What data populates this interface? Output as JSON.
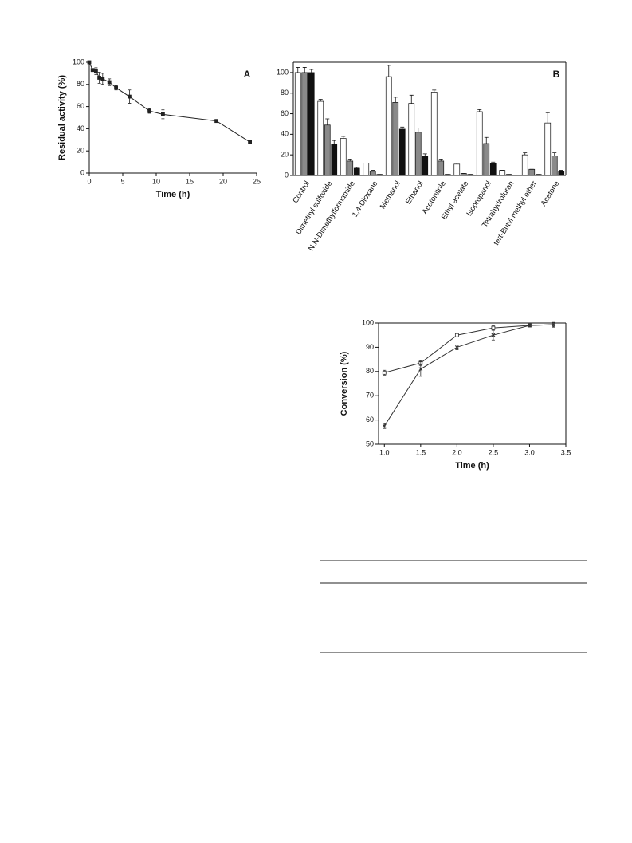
{
  "chart_data": [
    {
      "type": "line",
      "label": "A",
      "xlabel": "Time (h)",
      "ylabel": "Residual activity (%)",
      "xlim": [
        0,
        25
      ],
      "xticks": [
        0,
        5,
        10,
        15,
        20,
        25
      ],
      "ylim": [
        0,
        100
      ],
      "yticks": [
        0,
        20,
        40,
        60,
        80,
        100
      ],
      "x": [
        0,
        0.5,
        1,
        1.5,
        2,
        3,
        4,
        6,
        9,
        11,
        19,
        24
      ],
      "series": [
        {
          "color": "#222222",
          "marker": "square",
          "values": [
            100,
            93,
            92,
            86,
            85,
            82,
            77,
            69,
            56,
            53,
            47,
            28
          ],
          "errors": [
            0,
            1,
            3,
            5,
            5,
            3,
            2,
            6,
            2,
            4,
            1,
            1
          ]
        }
      ]
    },
    {
      "type": "bar",
      "label": "B",
      "ylim": [
        0,
        110
      ],
      "yticks": [
        0,
        20,
        40,
        60,
        80,
        100
      ],
      "categories": [
        "Control",
        "Dimethyl sulfoxide",
        "N,N-Dimethylformamide",
        "1,4-Dioxane",
        "Methanol",
        "Ethanol",
        "Acetonitrile",
        "Ethyl acetate",
        "Isopropanol",
        "Tetrahydrofuran",
        "tert-Butyl methyl ether",
        "Acetone"
      ],
      "series": [
        {
          "color": "#ffffff",
          "values": [
            100,
            72,
            36,
            12,
            96,
            70,
            81,
            11,
            62,
            5,
            20,
            51
          ],
          "errors": [
            5,
            2,
            2,
            0,
            11,
            8,
            2,
            1,
            2,
            0,
            2,
            10
          ]
        },
        {
          "color": "#8a8a8a",
          "values": [
            100,
            49,
            14,
            4,
            71,
            42,
            14,
            2,
            31,
            1,
            6,
            19
          ],
          "errors": [
            5,
            6,
            2,
            1,
            5,
            4,
            2,
            0,
            6,
            0,
            0,
            3
          ]
        },
        {
          "color": "#111111",
          "values": [
            100,
            30,
            7,
            1,
            45,
            19,
            1,
            1,
            12,
            0,
            1,
            4
          ],
          "errors": [
            3,
            4,
            1,
            0,
            2,
            2,
            0,
            0,
            1,
            0,
            0,
            1
          ]
        }
      ]
    },
    {
      "type": "line",
      "xlabel": "Time (h)",
      "ylabel": "Conversion (%)",
      "xlim": [
        0.92,
        3.5
      ],
      "xticks": [
        {
          "value": 1,
          "label": "1.0"
        },
        1.5,
        {
          "value": 2,
          "label": "2.0"
        },
        2.5,
        {
          "value": 3,
          "label": "3.0"
        },
        3.5
      ],
      "ylim": [
        50,
        100
      ],
      "yticks": [
        50,
        60,
        70,
        80,
        90,
        100
      ],
      "x": [
        1,
        1.5,
        2,
        2.5,
        3,
        3.33
      ],
      "series": [
        {
          "color": "#333333",
          "marker": "open-square",
          "values": [
            79.5,
            83.5,
            95,
            98,
            99,
            99.3
          ],
          "errors": [
            1,
            1,
            0.5,
            1,
            0.5,
            0.5
          ]
        },
        {
          "color": "#333333",
          "marker": "cross",
          "values": [
            57.5,
            81,
            90,
            95,
            99,
            99.3
          ],
          "errors": [
            1,
            3,
            1,
            2,
            0.5,
            1
          ]
        }
      ]
    }
  ]
}
